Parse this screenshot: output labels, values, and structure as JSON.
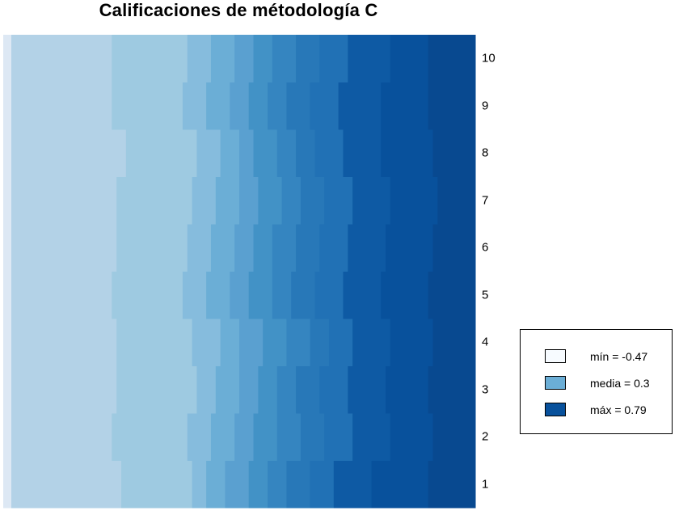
{
  "chart_data": {
    "type": "heatmap",
    "title": "Calificaciones de métodología C",
    "xlabel": "",
    "ylabel": "",
    "row_labels": [
      "1",
      "2",
      "3",
      "4",
      "5",
      "6",
      "7",
      "8",
      "9",
      "10"
    ],
    "color_scale": [
      "#f7fbff",
      "#deebf7",
      "#c6dbef",
      "#9ecae1",
      "#6baed6",
      "#4292c6",
      "#2171b5",
      "#08519c",
      "#08306b"
    ],
    "value_range": [
      -0.47,
      0.79
    ],
    "rows": [
      {
        "label": "1",
        "breaks": [
          0.25,
          0.4,
          0.43,
          0.47,
          0.52,
          0.56,
          0.6,
          0.65,
          0.7,
          0.78,
          0.9,
          1.0
        ]
      },
      {
        "label": "2",
        "breaks": [
          0.23,
          0.39,
          0.44,
          0.49,
          0.53,
          0.58,
          0.63,
          0.68,
          0.74,
          0.82,
          0.91,
          1.0
        ]
      },
      {
        "label": "3",
        "breaks": [
          0.24,
          0.41,
          0.45,
          0.5,
          0.54,
          0.58,
          0.62,
          0.67,
          0.73,
          0.81,
          0.9,
          1.0
        ]
      },
      {
        "label": "4",
        "breaks": [
          0.24,
          0.4,
          0.46,
          0.5,
          0.55,
          0.6,
          0.65,
          0.69,
          0.74,
          0.82,
          0.91,
          1.0
        ]
      },
      {
        "label": "5",
        "breaks": [
          0.23,
          0.38,
          0.43,
          0.48,
          0.52,
          0.57,
          0.61,
          0.66,
          0.72,
          0.8,
          0.9,
          1.0
        ]
      },
      {
        "label": "6",
        "breaks": [
          0.24,
          0.39,
          0.44,
          0.49,
          0.53,
          0.57,
          0.62,
          0.67,
          0.73,
          0.81,
          0.91,
          1.0
        ]
      },
      {
        "label": "7",
        "breaks": [
          0.24,
          0.4,
          0.45,
          0.5,
          0.54,
          0.59,
          0.63,
          0.68,
          0.74,
          0.82,
          0.92,
          1.0
        ]
      },
      {
        "label": "8",
        "breaks": [
          0.26,
          0.41,
          0.46,
          0.5,
          0.53,
          0.58,
          0.62,
          0.66,
          0.72,
          0.8,
          0.91,
          1.0
        ]
      },
      {
        "label": "9",
        "breaks": [
          0.23,
          0.38,
          0.43,
          0.48,
          0.52,
          0.56,
          0.6,
          0.65,
          0.71,
          0.8,
          0.9,
          1.0
        ]
      },
      {
        "label": "10",
        "breaks": [
          0.23,
          0.39,
          0.44,
          0.49,
          0.53,
          0.57,
          0.62,
          0.67,
          0.73,
          0.82,
          0.9,
          1.0
        ]
      }
    ],
    "legend": {
      "position": "right",
      "items": [
        {
          "label": "mín = -0.47",
          "color": "#f7fbff"
        },
        {
          "label": "media = 0.3",
          "color": "#6baed6"
        },
        {
          "label": "máx = 0.79",
          "color": "#08519c"
        }
      ]
    }
  }
}
